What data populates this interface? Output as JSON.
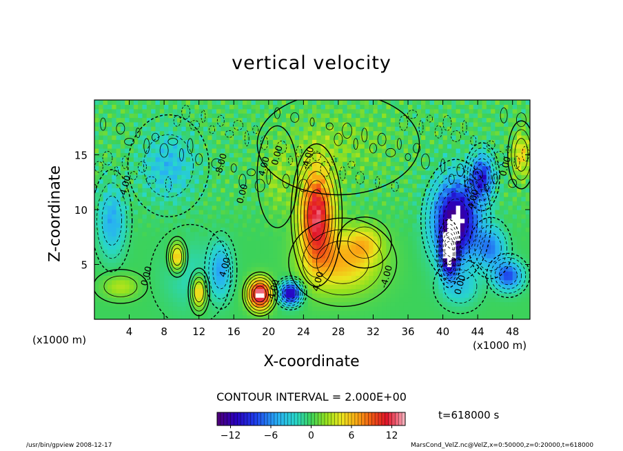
{
  "chart_data": {
    "type": "heatmap",
    "title": "vertical velocity",
    "xlabel": "X-coordinate",
    "ylabel": "Z-coordinate",
    "x_unit": "(x1000 m)",
    "xlim": [
      0,
      50
    ],
    "ylim": [
      0,
      20
    ],
    "x_ticks": [
      4,
      8,
      12,
      16,
      20,
      24,
      28,
      32,
      36,
      40,
      44,
      48
    ],
    "y_ticks": [
      5,
      10,
      15
    ],
    "contour_interval": "CONTOUR INTERVAL = 2.000E+00",
    "contour_labels": [
      "-4.00",
      "-8.00",
      "4.00",
      "0.00",
      "-4.00",
      "0.00",
      "4.00",
      "0.00",
      "4.00",
      "-4.00",
      "4.00",
      "0.00",
      "0.00",
      "-4.00"
    ],
    "colorbar_ticks": [
      -12,
      -6,
      0,
      6,
      12
    ],
    "colorbar_range": [
      -14,
      14
    ],
    "time_label": "t=618000 s",
    "features": [
      {
        "x": 19,
        "z": 2.3,
        "sx": 1.3,
        "sz": 1.3,
        "value": 14
      },
      {
        "x": 22.5,
        "z": 2.4,
        "sx": 1.2,
        "sz": 1.0,
        "value": -12
      },
      {
        "x": 25.5,
        "z": 9.5,
        "sx": 1.9,
        "sz": 4.2,
        "value": 12
      },
      {
        "x": 28.5,
        "z": 5.2,
        "sx": 4.0,
        "sz": 2.6,
        "value": 6
      },
      {
        "x": 31,
        "z": 7.0,
        "sx": 2.0,
        "sz": 1.5,
        "value": 4
      },
      {
        "x": 41.5,
        "z": 9.0,
        "sx": 2.6,
        "sz": 3.6,
        "value": -14
      },
      {
        "x": 40.7,
        "z": 6.0,
        "sx": 0.9,
        "sz": 2.0,
        "value": -12
      },
      {
        "x": 44.5,
        "z": 13,
        "sx": 1.3,
        "sz": 2.0,
        "value": -9
      },
      {
        "x": 47.5,
        "z": 4.0,
        "sx": 1.6,
        "sz": 1.3,
        "value": -8
      },
      {
        "x": 45.5,
        "z": 6.5,
        "sx": 1.6,
        "sz": 1.8,
        "value": -6
      },
      {
        "x": 42,
        "z": 3.0,
        "sx": 2.0,
        "sz": 1.6,
        "value": -3
      },
      {
        "x": 9.5,
        "z": 5.7,
        "sx": 0.8,
        "sz": 1.2,
        "value": 7
      },
      {
        "x": 12,
        "z": 2.5,
        "sx": 0.8,
        "sz": 1.4,
        "value": 7
      },
      {
        "x": 3.0,
        "z": 3.0,
        "sx": 2.0,
        "sz": 1.0,
        "value": 3
      },
      {
        "x": 11,
        "z": 4.0,
        "sx": 3.0,
        "sz": 3.0,
        "value": -2
      },
      {
        "x": 14.5,
        "z": 4.5,
        "sx": 1.2,
        "sz": 2.3,
        "value": -5
      },
      {
        "x": 2,
        "z": 9,
        "sx": 1.5,
        "sz": 3,
        "value": -5
      },
      {
        "x": 8.5,
        "z": 14,
        "sx": 3,
        "sz": 3,
        "value": -4
      },
      {
        "x": 21,
        "z": 13,
        "sx": 1.5,
        "sz": 3,
        "value": 2
      },
      {
        "x": 49,
        "z": 15,
        "sx": 1,
        "sz": 2,
        "value": 5
      },
      {
        "x": 28,
        "z": 16,
        "sx": 6,
        "sz": 3,
        "value": 1.5
      }
    ]
  },
  "footer": {
    "left": "/usr/bin/gpview   2008-12-17",
    "right": "MarsCond_VelZ.nc@VelZ,x=0:50000,z=0:20000,t=618000"
  }
}
